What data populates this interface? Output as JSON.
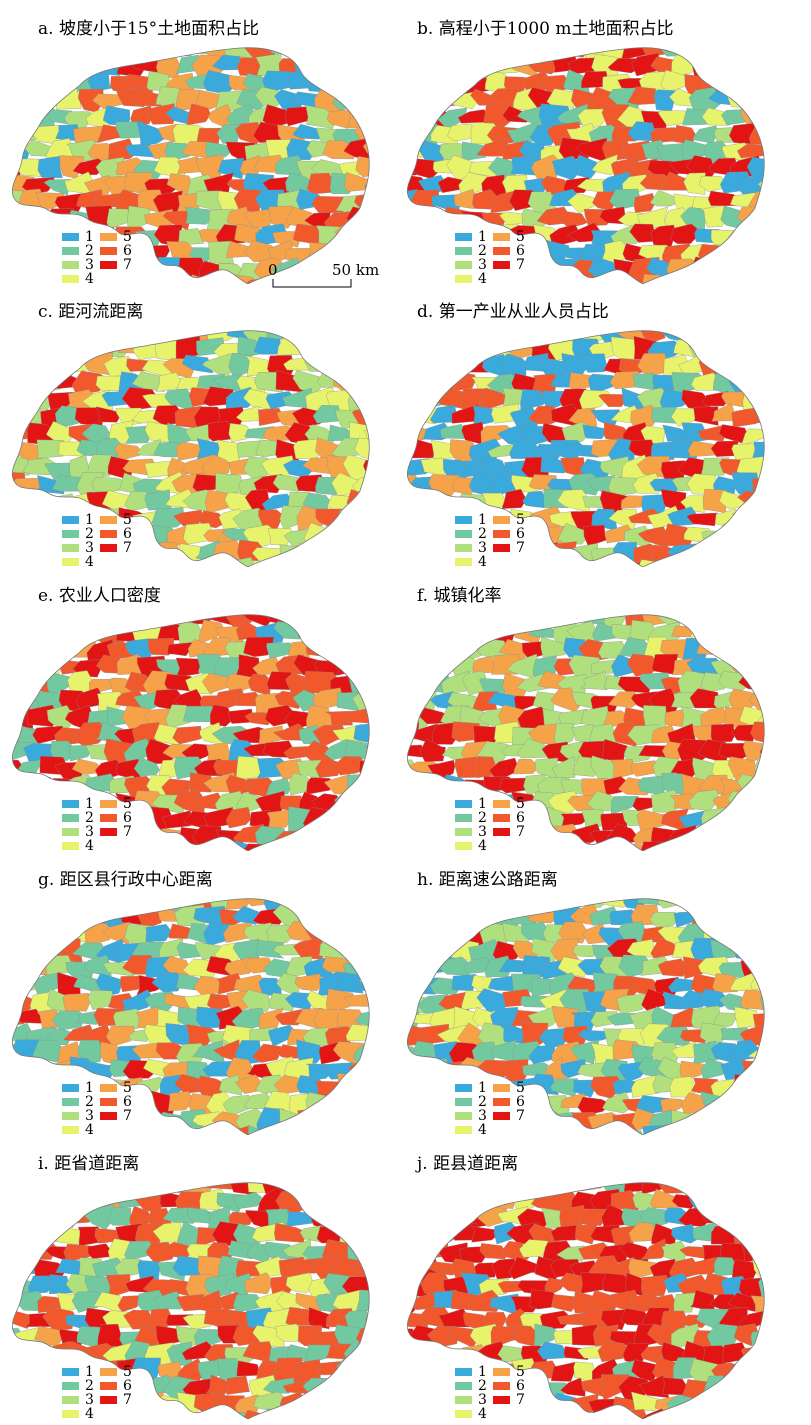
{
  "palette": {
    "1": "#3aa9dc",
    "2": "#72c9a0",
    "3": "#b0df7d",
    "4": "#e6f36b",
    "5": "#f5a249",
    "6": "#f1592c",
    "7": "#e31414"
  },
  "legend_labels": [
    "1",
    "2",
    "3",
    "4",
    "5",
    "6",
    "7"
  ],
  "scale": {
    "zero": "0",
    "end": "50 km"
  },
  "panels": [
    {
      "id": "a",
      "title": "a. 坡度小于15°土地面积占比",
      "weights": [
        2,
        3,
        2,
        1,
        5,
        2,
        2
      ]
    },
    {
      "id": "b",
      "title": "b. 高程小于1000 m土地面积占比",
      "weights": [
        3,
        2,
        1,
        5,
        1,
        4,
        3
      ]
    },
    {
      "id": "c",
      "title": "c. 距河流距离",
      "weights": [
        1,
        3,
        5,
        5,
        3,
        1,
        2
      ]
    },
    {
      "id": "d",
      "title": "d. 第一产业从业人员占比",
      "weights": [
        6,
        1,
        1,
        3,
        2,
        2,
        4
      ]
    },
    {
      "id": "e",
      "title": "e. 农业人口密度",
      "weights": [
        1,
        3,
        2,
        1,
        3,
        4,
        6
      ]
    },
    {
      "id": "f",
      "title": "f. 城镇化率",
      "weights": [
        1,
        1,
        6,
        1,
        4,
        1,
        3
      ]
    },
    {
      "id": "g",
      "title": "g. 距区县行政中心距离",
      "weights": [
        4,
        4,
        3,
        2,
        4,
        3,
        1
      ]
    },
    {
      "id": "h",
      "title": "h. 距离速公路距离",
      "weights": [
        4,
        5,
        3,
        3,
        3,
        3,
        1
      ]
    },
    {
      "id": "i",
      "title": "i. 距省道距离",
      "weights": [
        1,
        4,
        1,
        2,
        1,
        6,
        3
      ]
    },
    {
      "id": "j",
      "title": "j. 距县道距离",
      "weights": [
        1,
        1,
        1,
        1,
        1,
        6,
        6
      ]
    }
  ]
}
